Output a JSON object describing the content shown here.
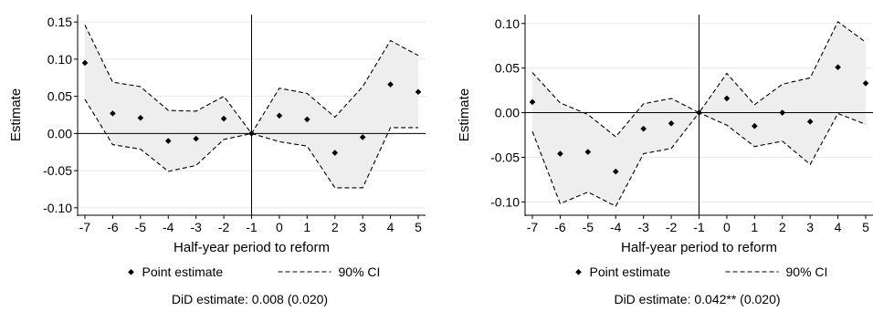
{
  "chart_data": [
    {
      "type": "scatter",
      "ylabel": "Estimate",
      "xlabel": "Half-year period to reform",
      "x": [
        -7,
        -6,
        -5,
        -4,
        -3,
        -2,
        -1,
        0,
        1,
        2,
        3,
        4,
        5
      ],
      "xticks": [
        "-7",
        "-6",
        "-5",
        "-4",
        "-3",
        "-2",
        "-1",
        "0",
        "1",
        "2",
        "3",
        "4",
        "5"
      ],
      "ylim": [
        -0.11,
        0.16
      ],
      "yticks": [
        -0.1,
        -0.05,
        0.0,
        0.05,
        0.1,
        0.15
      ],
      "ytick_labels": [
        "-0.10",
        "-0.05",
        "0.00",
        "0.05",
        "0.10",
        "0.15"
      ],
      "series": [
        {
          "name": "Point estimate",
          "values": [
            0.095,
            0.027,
            0.021,
            -0.01,
            -0.007,
            0.02,
            0.0,
            0.024,
            0.019,
            -0.026,
            -0.005,
            0.066,
            0.056
          ]
        },
        {
          "name": "90% CI",
          "lower": [
            0.046,
            -0.015,
            -0.021,
            -0.051,
            -0.043,
            -0.008,
            0.0,
            -0.011,
            -0.017,
            -0.073,
            -0.073,
            0.008,
            0.008
          ],
          "upper": [
            0.146,
            0.069,
            0.063,
            0.031,
            0.03,
            0.05,
            0.0,
            0.061,
            0.054,
            0.022,
            0.063,
            0.125,
            0.105
          ]
        }
      ],
      "reference_line_x": -1,
      "reference_line_y": 0,
      "legend": {
        "point_label": "Point estimate",
        "ci_label": "90% CI",
        "position": "bottom"
      },
      "note": "DiD estimate: 0.008 (0.020)"
    },
    {
      "type": "scatter",
      "ylabel": "Estimate",
      "xlabel": "Half-year period to reform",
      "x": [
        -7,
        -6,
        -5,
        -4,
        -3,
        -2,
        -1,
        0,
        1,
        2,
        3,
        4,
        5
      ],
      "xticks": [
        "-7",
        "-6",
        "-5",
        "-4",
        "-3",
        "-2",
        "-1",
        "0",
        "1",
        "2",
        "3",
        "4",
        "5"
      ],
      "ylim": [
        -0.115,
        0.11
      ],
      "yticks": [
        -0.1,
        -0.05,
        0.0,
        0.05,
        0.1
      ],
      "ytick_labels": [
        "-0.10",
        "-0.05",
        "0.00",
        "0.05",
        "0.10"
      ],
      "series": [
        {
          "name": "Point estimate",
          "values": [
            0.012,
            -0.046,
            -0.044,
            -0.066,
            -0.018,
            -0.012,
            0.0,
            0.016,
            -0.015,
            0.0,
            -0.01,
            0.051,
            0.033
          ]
        },
        {
          "name": "90% CI",
          "lower": [
            -0.021,
            -0.102,
            -0.089,
            -0.105,
            -0.046,
            -0.04,
            0.0,
            -0.014,
            -0.038,
            -0.032,
            -0.058,
            -0.001,
            -0.013
          ],
          "upper": [
            0.045,
            0.011,
            -0.002,
            -0.027,
            0.01,
            0.016,
            0.0,
            0.044,
            0.009,
            0.032,
            0.039,
            0.102,
            0.079
          ]
        }
      ],
      "reference_line_x": -1,
      "reference_line_y": 0,
      "legend": {
        "point_label": "Point estimate",
        "ci_label": "90% CI",
        "position": "bottom"
      },
      "note": "DiD estimate: 0.042** (0.020)"
    }
  ]
}
